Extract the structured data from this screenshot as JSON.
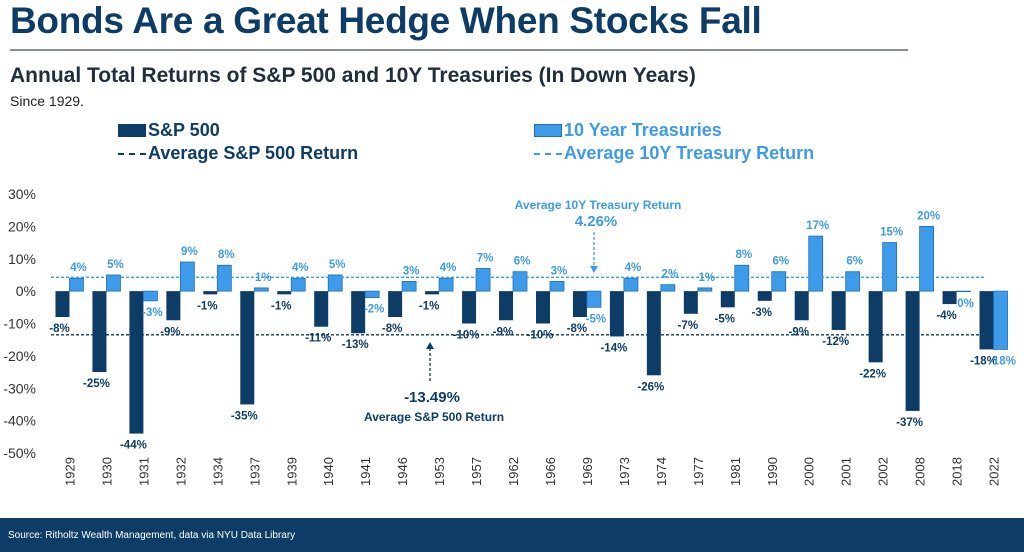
{
  "header": {
    "title": "Bonds Are a Great Hedge When Stocks Fall",
    "subtitle": "Annual Total Returns of S&P 500 and 10Y Treasuries (In Down Years)",
    "since": "Since 1929."
  },
  "legend": {
    "sp500": "S&P 500",
    "treasuries": "10 Year Treasuries",
    "avg_sp500": "Average S&P 500 Return",
    "avg_treasury": "Average 10Y Treasury Return"
  },
  "annotations": {
    "treasury_label": "Average 10Y Treasury Return",
    "treasury_value": "4.26%",
    "sp_value": "-13.49%",
    "sp_label": "Average S&P 500 Return"
  },
  "colors": {
    "sp500": "#0d3c66",
    "treasury": "#3d9be9",
    "axis_text": "#333333"
  },
  "footer": {
    "source": "Source: Ritholtz Wealth Management, data via NYU Data Library"
  },
  "chart_data": {
    "type": "bar",
    "categories": [
      "1929",
      "1930",
      "1931",
      "1932",
      "1934",
      "1937",
      "1939",
      "1940",
      "1941",
      "1946",
      "1953",
      "1957",
      "1962",
      "1966",
      "1969",
      "1973",
      "1974",
      "1977",
      "1981",
      "1990",
      "2000",
      "2001",
      "2002",
      "2008",
      "2018",
      "2022"
    ],
    "series": [
      {
        "name": "S&P 500",
        "values": [
          -8,
          -25,
          -44,
          -9,
          -1,
          -35,
          -1,
          -11,
          -13,
          -8,
          -1,
          -10,
          -9,
          -10,
          -8,
          -14,
          -26,
          -7,
          -5,
          -3,
          -9,
          -12,
          -22,
          -37,
          -4,
          -18
        ],
        "labels": [
          "-8%",
          "-25%",
          "-44%",
          "-9%",
          "-1%",
          "-35%",
          "-1%",
          "-11%",
          "-13%",
          "-8%",
          "-1%",
          "-10%",
          "-9%",
          "-10%",
          "-8%",
          "-14%",
          "-26%",
          "-7%",
          "-5%",
          "-3%",
          "-9%",
          "-12%",
          "-22%",
          "-37%",
          "-4%",
          "-18%"
        ]
      },
      {
        "name": "10 Year Treasuries",
        "values": [
          4,
          5,
          -3,
          9,
          8,
          1,
          4,
          5,
          -2,
          3,
          4,
          7,
          6,
          3,
          -5,
          4,
          2,
          1,
          8,
          6,
          17,
          6,
          15,
          20,
          0,
          -18
        ],
        "labels": [
          "4%",
          "5%",
          "-3%",
          "9%",
          "8%",
          "1%",
          "4%",
          "5%",
          "-2%",
          "3%",
          "4%",
          "7%",
          "6%",
          "3%",
          "-5%",
          "4%",
          "2%",
          "1%",
          "8%",
          "6%",
          "17%",
          "6%",
          "15%",
          "20%",
          "0%",
          "-18%"
        ]
      }
    ],
    "averages": {
      "sp500": -13.49,
      "treasury": 4.26
    },
    "ylim": [
      -50,
      30
    ],
    "yticks": [
      30,
      20,
      10,
      0,
      -10,
      -20,
      -30,
      -40,
      -50
    ],
    "ytick_labels": [
      "30%",
      "20%",
      "10%",
      "0%",
      "-10%",
      "-20%",
      "-30%",
      "-40%",
      "-50%"
    ],
    "grid": false,
    "legend_position": "top"
  }
}
